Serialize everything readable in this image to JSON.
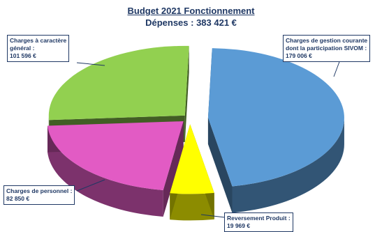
{
  "chart_data": {
    "type": "pie",
    "title": "Budget 2021 Fonctionnement",
    "subtitle": "Dépenses : 383 421 €",
    "slices": [
      {
        "label": "Charges de gestion courante dont la participation SIVOM",
        "value": 179006,
        "value_text": "179 006 €",
        "color": "#5b9bd5"
      },
      {
        "label": "Reversement Produit",
        "value": 19969,
        "value_text": "19 969 €",
        "color": "#ffff00"
      },
      {
        "label": "Charges de personnel",
        "value": 82850,
        "value_text": "82 850 €",
        "color": "#e25bc4"
      },
      {
        "label": "Charges à caractère général",
        "value": 101596,
        "value_text": "101 596 €",
        "color": "#92d050"
      }
    ]
  },
  "labels": {
    "gestion": {
      "line1": "Charges de gestion courante",
      "line2": "dont la participation SIVOM :",
      "value": "179 006 €"
    },
    "reversement": {
      "line1": "Reversement Produit :",
      "value": "19 969 €"
    },
    "personnel": {
      "line1": "Charges de personnel :",
      "value": "82 850 €"
    },
    "general": {
      "line1": "Charges à caractère",
      "line2": "général :",
      "value": "101 596 €"
    }
  }
}
